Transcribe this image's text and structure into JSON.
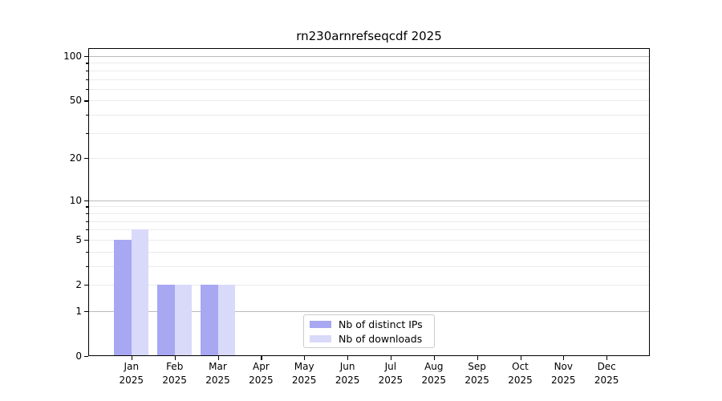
{
  "title": "rn230arnrefseqcdf 2025",
  "chart_data": {
    "type": "bar",
    "title": "rn230arnrefseqcdf 2025",
    "categories": [
      "Jan 2025",
      "Feb 2025",
      "Mar 2025",
      "Apr 2025",
      "May 2025",
      "Jun 2025",
      "Jul 2025",
      "Aug 2025",
      "Sep 2025",
      "Oct 2025",
      "Nov 2025",
      "Dec 2025"
    ],
    "series": [
      {
        "name": "Nb of distinct IPs",
        "color": "#a7a7f2",
        "values": [
          5,
          2,
          2,
          0,
          0,
          0,
          0,
          0,
          0,
          0,
          0,
          0
        ]
      },
      {
        "name": "Nb of downloads",
        "color": "#d9d9f9",
        "values": [
          6,
          2,
          2,
          0,
          0,
          0,
          0,
          0,
          0,
          0,
          0,
          0
        ]
      }
    ],
    "xlabel": "",
    "ylabel": "",
    "yscale": "log1p",
    "ylim": [
      0,
      113
    ],
    "y_tick_labels": [
      0,
      1,
      2,
      5,
      10,
      20,
      50,
      100
    ],
    "grid_major_values": [
      1,
      10,
      100
    ],
    "grid_minor_values": [
      2,
      3,
      4,
      5,
      6,
      7,
      8,
      9,
      20,
      30,
      40,
      50,
      60,
      70,
      80,
      90
    ],
    "grid": "on",
    "legend_position": "bottom-center"
  }
}
